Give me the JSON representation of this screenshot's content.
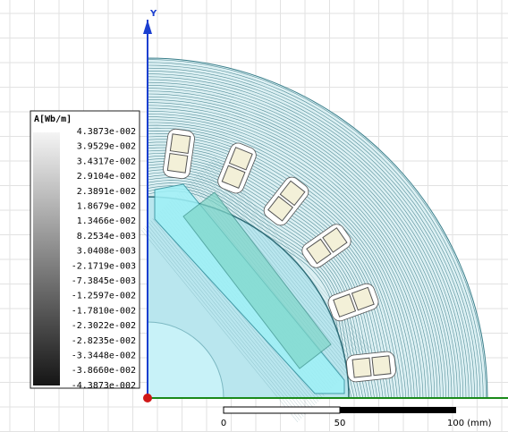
{
  "axis": {
    "y_label": "Y"
  },
  "legend": {
    "title": "A[Wb/m]",
    "labels": [
      "4.3873e-002",
      "3.9529e-002",
      "3.4317e-002",
      "2.9104e-002",
      "2.3891e-002",
      "1.8679e-002",
      "1.3466e-002",
      "8.2534e-003",
      "3.0408e-003",
      "-2.1719e-003",
      "-7.3845e-003",
      "-1.2597e-002",
      "-1.7810e-002",
      "-2.3022e-002",
      "-2.8235e-002",
      "-3.3448e-002",
      "-3.8660e-002",
      "-4.3873e-002"
    ]
  },
  "scale_bar": {
    "labels": [
      "0",
      "50",
      "100 (mm)"
    ]
  }
}
